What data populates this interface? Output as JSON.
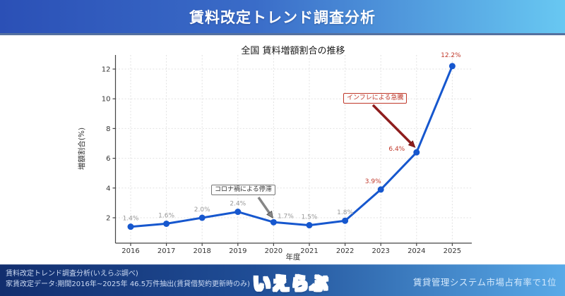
{
  "header": {
    "title": "賃料改定トレンド調査分析"
  },
  "chart_data": {
    "type": "line",
    "title": "全国 賃料増額割合の推移",
    "xlabel": "年度",
    "ylabel": "増額割合(%)",
    "x": [
      2016,
      2017,
      2018,
      2019,
      2020,
      2021,
      2022,
      2023,
      2024,
      2025
    ],
    "values": [
      1.4,
      1.6,
      2.0,
      2.4,
      1.7,
      1.5,
      1.8,
      3.9,
      6.4,
      12.2
    ],
    "point_labels": [
      "1.4%",
      "1.6%",
      "2.0%",
      "2.4%",
      "1.7%",
      "1.5%",
      "1.8%",
      "3.9%",
      "6.4%",
      "12.2%"
    ],
    "label_styles": [
      "gray",
      "gray",
      "gray",
      "gray",
      "gray",
      "gray",
      "gray",
      "red",
      "red",
      "red"
    ],
    "yticks": [
      2,
      4,
      6,
      8,
      10,
      12
    ],
    "ylim": [
      0.3,
      13.0
    ],
    "grid": true,
    "legend": "none",
    "line_color": "#1657ce",
    "gray_label_color": "#999999",
    "red_label_color": "#c0392b",
    "axis_color": "#444444",
    "tick_label_color": "#333333",
    "grid_color": "#e2e2e2",
    "annotations": [
      {
        "text": "コロナ禍による停滞",
        "target_year": 2020,
        "text_color": "#333333",
        "border_color": "#777777",
        "arrow_color": "#868686",
        "arrow_edge": "#4a4a4a"
      },
      {
        "text": "インフレによる急騰",
        "target_year": 2024,
        "text_color": "#c0392b",
        "border_color": "#c0392b",
        "arrow_color": "#8e1d1d",
        "arrow_edge": "#6d1111"
      }
    ]
  },
  "footer": {
    "source_line1": "賃料改定トレンド調査分析(いえらぶ調べ)",
    "source_line2": "家賃改定データ:期間2016年~2025年 46.5万件抽出(賃貸借契約更新時のみ)",
    "logo_text": "いえらぶ",
    "right_text": "賃貸管理システム市場占有率で1位"
  }
}
